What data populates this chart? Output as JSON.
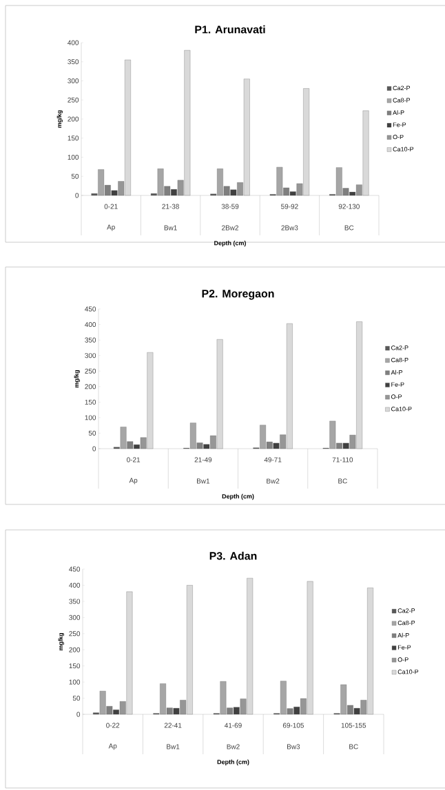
{
  "chart_data": [
    {
      "type": "bar",
      "title": "P1. Arunavati",
      "xlabel": "Depth (cm)",
      "ylabel": "mg/kg",
      "categories": [
        "0-21",
        "21-38",
        "38-59",
        "59-92",
        "92-130"
      ],
      "annotations": [
        "Ap",
        "Bw1",
        "2Bw2",
        "2Bw3",
        "BC"
      ],
      "series": [
        {
          "name": "Ca2-P",
          "color": "#595959",
          "values": [
            5,
            5,
            4,
            3,
            3
          ]
        },
        {
          "name": "Ca8-P",
          "color": "#a6a6a6",
          "values": [
            68,
            70,
            70,
            74,
            73
          ]
        },
        {
          "name": "Al-P",
          "color": "#7f7f7f",
          "values": [
            27,
            24,
            24,
            20,
            19
          ]
        },
        {
          "name": "Fe-P",
          "color": "#404040",
          "values": [
            13,
            16,
            15,
            10,
            9
          ]
        },
        {
          "name": "O-P",
          "color": "#969696",
          "values": [
            37,
            40,
            34,
            31,
            28
          ]
        },
        {
          "name": "Ca10-P",
          "color": "#d9d9d9",
          "values": [
            355,
            380,
            305,
            280,
            222
          ]
        }
      ],
      "ylim": [
        0,
        400
      ],
      "yticks": [
        0,
        50,
        100,
        150,
        200,
        250,
        300,
        350,
        400
      ],
      "legend": "right"
    },
    {
      "type": "bar",
      "title": "P2. Moregaon",
      "xlabel": "Depth (cm)",
      "ylabel": "mg/kg",
      "categories": [
        "0-21",
        "21-49",
        "49-71",
        "71-110"
      ],
      "annotations": [
        "Ap",
        "Bw1",
        "Bw2",
        "BC"
      ],
      "series": [
        {
          "name": "Ca2-P",
          "color": "#595959",
          "values": [
            5,
            2,
            3,
            2
          ]
        },
        {
          "name": "Ca8-P",
          "color": "#a6a6a6",
          "values": [
            70,
            83,
            76,
            89
          ]
        },
        {
          "name": "Al-P",
          "color": "#7f7f7f",
          "values": [
            23,
            19,
            22,
            18
          ]
        },
        {
          "name": "Fe-P",
          "color": "#404040",
          "values": [
            13,
            14,
            18,
            18
          ]
        },
        {
          "name": "O-P",
          "color": "#969696",
          "values": [
            36,
            42,
            45,
            44
          ]
        },
        {
          "name": "Ca10-P",
          "color": "#d9d9d9",
          "values": [
            310,
            352,
            403,
            409
          ]
        }
      ],
      "ylim": [
        0,
        450
      ],
      "yticks": [
        0,
        50,
        100,
        150,
        200,
        250,
        300,
        350,
        400,
        450
      ],
      "legend": "right"
    },
    {
      "type": "bar",
      "title": "P3. Adan",
      "xlabel": "Depth (cm)",
      "ylabel": "mg/kg",
      "categories": [
        "0-22",
        "22-41",
        "41-69",
        "69-105",
        "105-155"
      ],
      "annotations": [
        "Ap",
        "Bw1",
        "Bw2",
        "Bw3",
        "BC"
      ],
      "series": [
        {
          "name": "Ca2-P",
          "color": "#595959",
          "values": [
            5,
            3,
            3,
            3,
            3
          ]
        },
        {
          "name": "Ca8-P",
          "color": "#a6a6a6",
          "values": [
            72,
            95,
            102,
            103,
            92
          ]
        },
        {
          "name": "Al-P",
          "color": "#7f7f7f",
          "values": [
            25,
            20,
            20,
            18,
            28
          ]
        },
        {
          "name": "Fe-P",
          "color": "#404040",
          "values": [
            14,
            19,
            22,
            23,
            19
          ]
        },
        {
          "name": "O-P",
          "color": "#969696",
          "values": [
            40,
            44,
            48,
            49,
            44
          ]
        },
        {
          "name": "Ca10-P",
          "color": "#d9d9d9",
          "values": [
            380,
            400,
            422,
            412,
            392
          ]
        }
      ],
      "ylim": [
        0,
        450
      ],
      "yticks": [
        0,
        50,
        100,
        150,
        200,
        250,
        300,
        350,
        400,
        450
      ],
      "legend": "right"
    }
  ]
}
